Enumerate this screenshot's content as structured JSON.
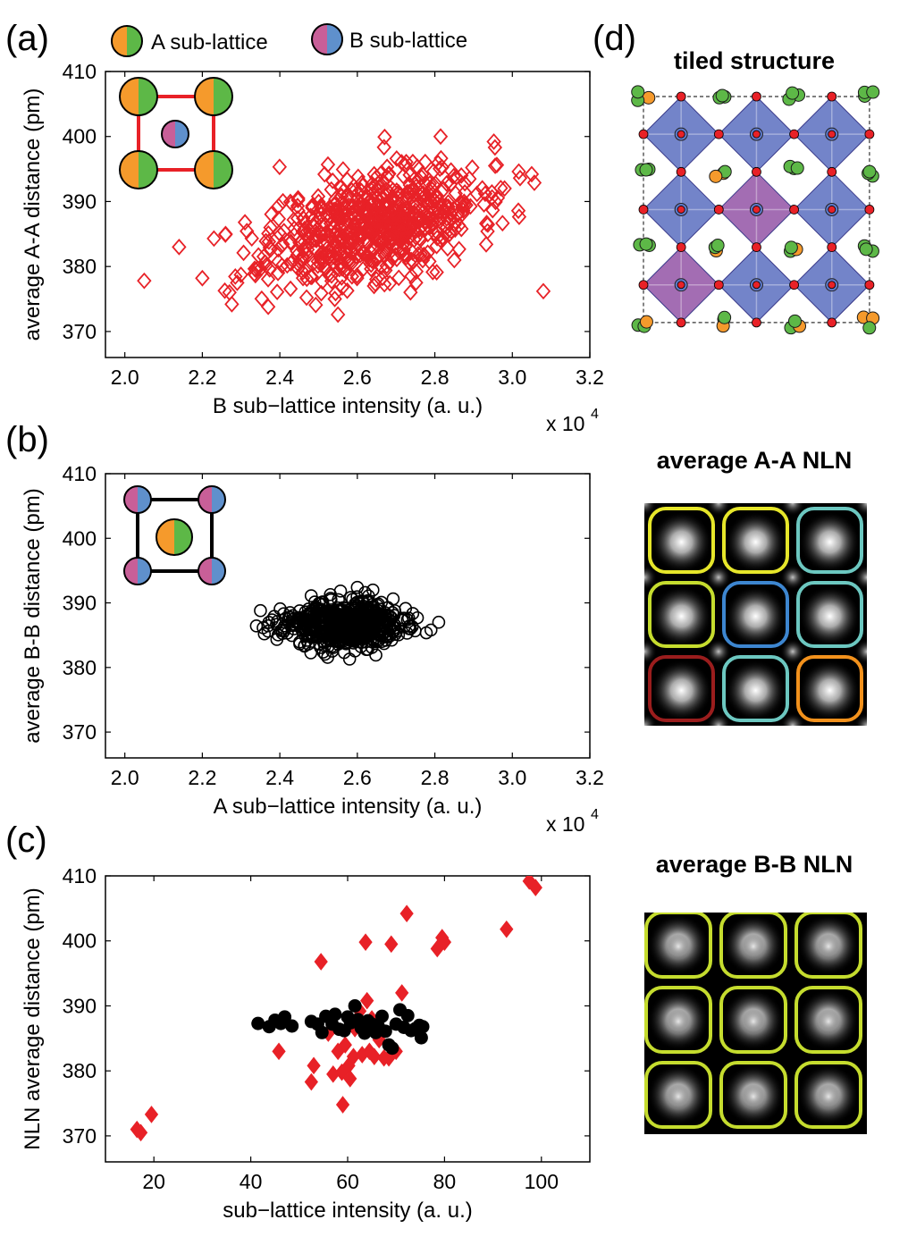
{
  "panels": {
    "a": "(a)",
    "b": "(b)",
    "c": "(c)",
    "d": "(d)"
  },
  "legend": {
    "a_label": "A sub-lattice",
    "b_label": "B sub-lattice"
  },
  "colors": {
    "a_orange": "#f59a2c",
    "a_green": "#5db847",
    "b_pink": "#c85f98",
    "b_blue": "#5f90cc",
    "red": "#e82127",
    "black": "#000000",
    "octa_blue": "#5b6fc0",
    "octa_purple": "#9353a6",
    "nln_yellow": "#e6e62a",
    "nln_ygreen": "#c5dc2e",
    "nln_cyan": "#6cc7c0",
    "nln_blue": "#3d86d0",
    "nln_darkred": "#9a1d1d",
    "nln_orange": "#f2911c"
  },
  "right": {
    "tiled_title": "tiled structure",
    "aa_title": "average A-A NLN",
    "bb_title": "average B-B NLN"
  },
  "chart_data": [
    {
      "id": "a",
      "type": "scatter",
      "marker": "open-diamond",
      "color": "#e82127",
      "xlabel": "B sub−lattice intensity (a. u.)",
      "ylabel": "average A-A distance (pm)",
      "xlim": [
        1.95,
        3.2
      ],
      "ylim": [
        366,
        410
      ],
      "xticks": [
        "2.0",
        "2.2",
        "2.4",
        "2.6",
        "2.8",
        "3.0",
        "3.2"
      ],
      "xtick_values": [
        2.0,
        2.2,
        2.4,
        2.6,
        2.8,
        3.0,
        3.2
      ],
      "yticks": [
        "370",
        "380",
        "390",
        "400",
        "410"
      ],
      "ytick_values": [
        370,
        380,
        390,
        400,
        410
      ],
      "multiplier": "x 10",
      "multiplier_exp": "4",
      "cloud": {
        "n": 700,
        "cx": 2.64,
        "cy": 386.5,
        "sx": 0.135,
        "sy": 4.2,
        "slope": 14.0,
        "seed": 11
      },
      "outliers": [
        [
          2.05,
          377.8
        ],
        [
          2.14,
          383.0
        ],
        [
          2.2,
          378.2
        ],
        [
          2.27,
          376.0
        ],
        [
          2.29,
          377.5
        ],
        [
          2.23,
          384.3
        ],
        [
          2.26,
          385.0
        ],
        [
          2.31,
          386.8
        ],
        [
          3.08,
          376.2
        ],
        [
          3.05,
          394.2
        ],
        [
          3.02,
          393.6
        ],
        [
          2.98,
          392.0
        ],
        [
          2.37,
          373.8
        ],
        [
          2.93,
          391.2
        ]
      ]
    },
    {
      "id": "b",
      "type": "scatter",
      "marker": "open-circle",
      "color": "#000000",
      "xlabel": "A sub−lattice intensity (a. u.)",
      "ylabel": "average B-B distance (pm)",
      "xlim": [
        1.95,
        3.2
      ],
      "ylim": [
        366,
        410
      ],
      "xticks": [
        "2.0",
        "2.2",
        "2.4",
        "2.6",
        "2.8",
        "3.0",
        "3.2"
      ],
      "xtick_values": [
        2.0,
        2.2,
        2.4,
        2.6,
        2.8,
        3.0,
        3.2
      ],
      "yticks": [
        "370",
        "380",
        "390",
        "400",
        "410"
      ],
      "ytick_values": [
        370,
        380,
        390,
        400,
        410
      ],
      "multiplier": "x 10",
      "multiplier_exp": "4",
      "cloud": {
        "n": 650,
        "cx": 2.56,
        "cy": 386.6,
        "sx": 0.075,
        "sy": 1.7,
        "slope": 0.0,
        "seed": 23
      },
      "outliers": [
        [
          2.35,
          388.8
        ],
        [
          2.81,
          387.0
        ],
        [
          2.79,
          385.8
        ],
        [
          2.6,
          392.4
        ],
        [
          2.58,
          381.3
        ],
        [
          2.47,
          384.2
        ],
        [
          2.62,
          391.6
        ],
        [
          2.36,
          385.2
        ]
      ]
    },
    {
      "id": "c",
      "type": "scatter",
      "xlabel": "sub−lattice intensity (a. u.)",
      "ylabel": "NLN average distance (pm)",
      "xlim": [
        10,
        110
      ],
      "ylim": [
        366,
        410
      ],
      "xticks": [
        "20",
        "40",
        "60",
        "80",
        "100"
      ],
      "xtick_values": [
        20,
        40,
        60,
        80,
        100
      ],
      "yticks": [
        "370",
        "380",
        "390",
        "400",
        "410"
      ],
      "ytick_values": [
        370,
        380,
        390,
        400,
        410
      ],
      "series": [
        {
          "name": "A-A NLN",
          "marker": "filled-diamond",
          "color": "#e82127",
          "points": [
            [
              16.5,
              371.0
            ],
            [
              17.3,
              370.5
            ],
            [
              19.5,
              373.3
            ],
            [
              45.8,
              383.0
            ],
            [
              52.5,
              378.3
            ],
            [
              53.0,
              380.8
            ],
            [
              54.5,
              396.8
            ],
            [
              56.0,
              385.8
            ],
            [
              57.0,
              379.5
            ],
            [
              58.0,
              383.0
            ],
            [
              58.8,
              379.8
            ],
            [
              59.0,
              374.8
            ],
            [
              59.5,
              384.0
            ],
            [
              60.2,
              380.8
            ],
            [
              60.5,
              378.8
            ],
            [
              61.2,
              382.2
            ],
            [
              61.5,
              386.5
            ],
            [
              62.5,
              389.2
            ],
            [
              63.0,
              382.5
            ],
            [
              63.7,
              399.8
            ],
            [
              64.0,
              390.8
            ],
            [
              64.5,
              383.0
            ],
            [
              65.0,
              388.0
            ],
            [
              65.5,
              382.2
            ],
            [
              66.5,
              384.8
            ],
            [
              67.5,
              382.0
            ],
            [
              68.5,
              382.0
            ],
            [
              69.0,
              399.5
            ],
            [
              70.0,
              383.0
            ],
            [
              71.2,
              392.0
            ],
            [
              72.2,
              404.2
            ],
            [
              78.5,
              398.8
            ],
            [
              79.5,
              400.5
            ],
            [
              80.0,
              399.8
            ],
            [
              92.8,
              401.8
            ],
            [
              97.5,
              409.2
            ],
            [
              98.8,
              408.2
            ]
          ]
        },
        {
          "name": "B-B NLN",
          "marker": "filled-circle",
          "color": "#000000",
          "points": [
            [
              41.5,
              387.3
            ],
            [
              43.8,
              386.8
            ],
            [
              45.0,
              387.8
            ],
            [
              46.2,
              387.3
            ],
            [
              47.0,
              388.3
            ],
            [
              48.5,
              386.9
            ],
            [
              52.5,
              387.6
            ],
            [
              53.8,
              387.2
            ],
            [
              54.7,
              385.9
            ],
            [
              55.5,
              388.4
            ],
            [
              56.8,
              387.2
            ],
            [
              57.4,
              388.7
            ],
            [
              58.3,
              386.4
            ],
            [
              59.3,
              386.2
            ],
            [
              60.0,
              388.3
            ],
            [
              60.6,
              387.4
            ],
            [
              61.5,
              390.0
            ],
            [
              62.1,
              387.9
            ],
            [
              62.8,
              386.6
            ],
            [
              63.5,
              385.8
            ],
            [
              64.2,
              387.7
            ],
            [
              65.0,
              387.2
            ],
            [
              65.8,
              385.9
            ],
            [
              66.3,
              386.9
            ],
            [
              67.1,
              388.4
            ],
            [
              67.8,
              386.1
            ],
            [
              68.5,
              384.0
            ],
            [
              69.2,
              383.5
            ],
            [
              70.0,
              387.2
            ],
            [
              70.8,
              389.4
            ],
            [
              71.6,
              386.7
            ],
            [
              72.4,
              388.5
            ],
            [
              73.1,
              386.2
            ],
            [
              74.0,
              386.5
            ],
            [
              74.8,
              387.0
            ],
            [
              75.2,
              385.1
            ],
            [
              75.5,
              386.8
            ]
          ]
        }
      ]
    }
  ]
}
